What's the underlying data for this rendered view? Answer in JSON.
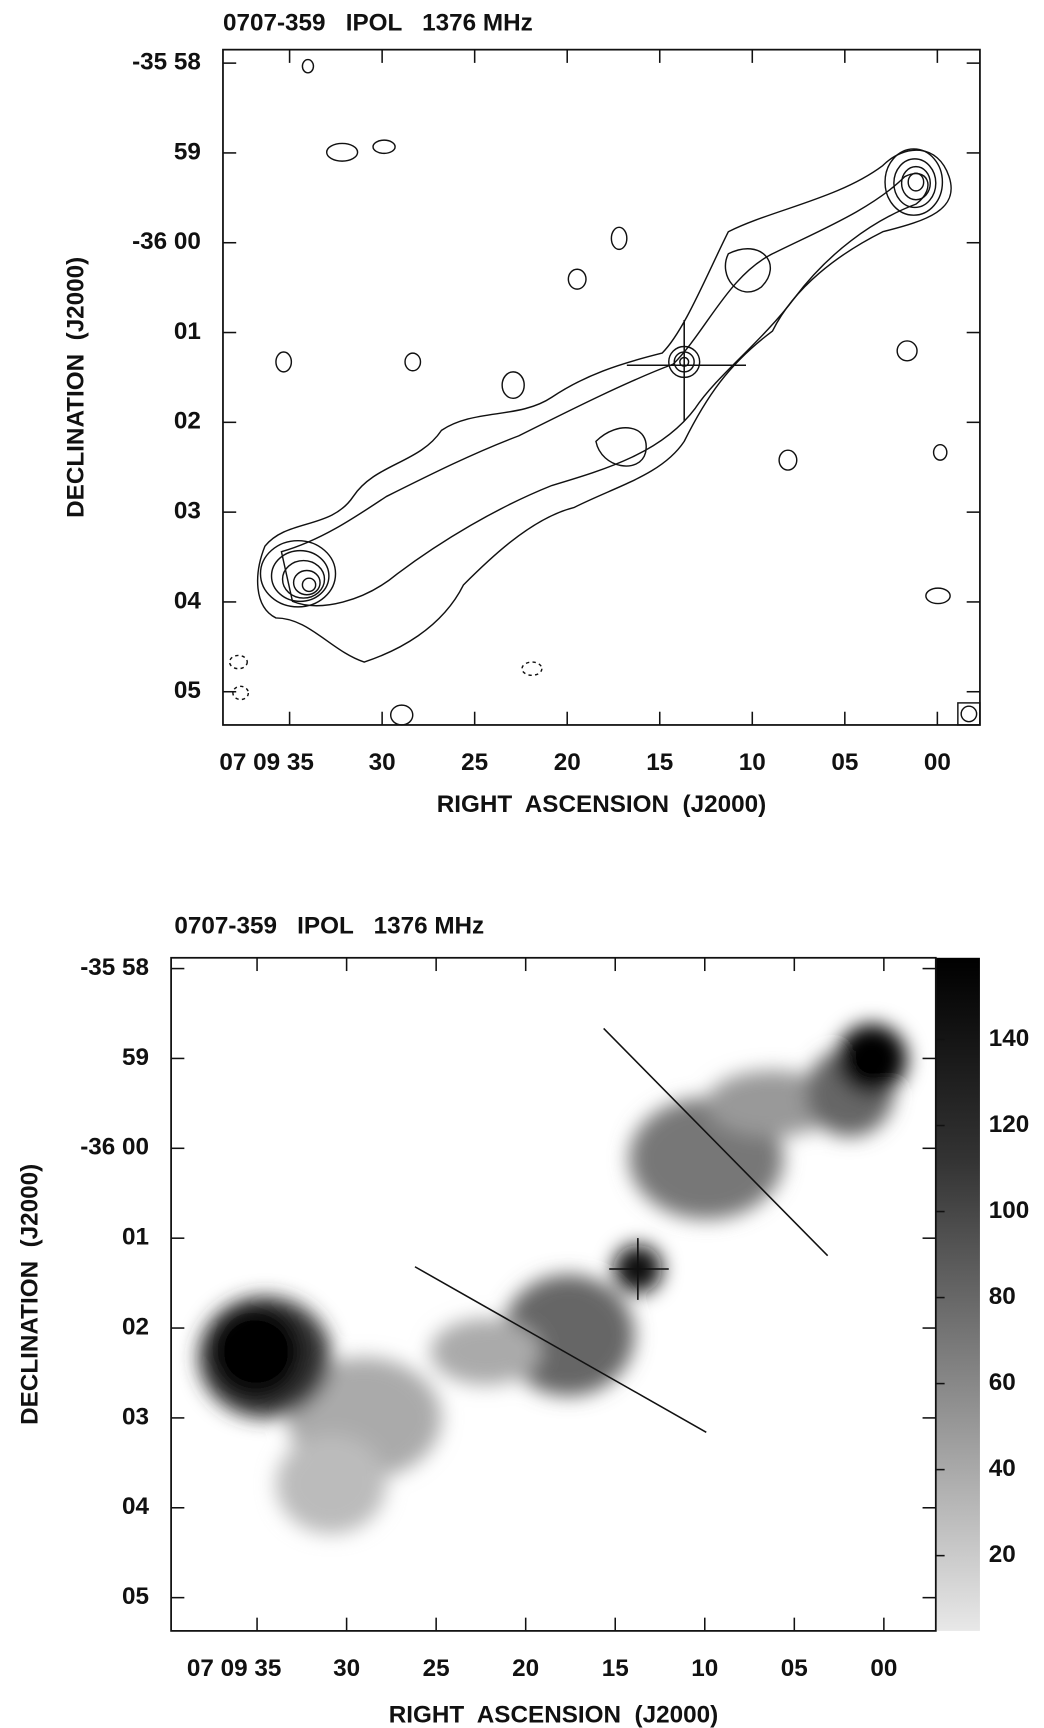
{
  "chart_data": [
    {
      "type": "contour",
      "title": "0707-359   IPOL   1376 MHz",
      "xlabel": "RIGHT  ASCENSION  (J2000)",
      "ylabel": "DECLINATION  (J2000)",
      "xlim": [
        38.6,
        -2.3
      ],
      "ylim": [
        65.37,
        57.85
      ],
      "xticks": [
        {
          "value": 35,
          "label": "07 09 35"
        },
        30,
        25,
        20,
        15,
        10,
        {
          "value": 5,
          "label": "05"
        },
        {
          "value": 0,
          "label": "00"
        }
      ],
      "yticks": [
        {
          "value": 58,
          "label": "-35 58"
        },
        59,
        {
          "value": 60,
          "label": "-36 00"
        },
        {
          "value": 61,
          "label": "01"
        },
        {
          "value": 62,
          "label": "02"
        },
        {
          "value": 63,
          "label": "03"
        },
        {
          "value": 64,
          "label": "04"
        },
        {
          "value": 65,
          "label": "05"
        }
      ]
    },
    {
      "type": "image",
      "title": "0707-359   IPOL   1376 MHz",
      "xlabel": "RIGHT  ASCENSION  (J2000)",
      "ylabel": "DECLINATION  (J2000)",
      "xlim": [
        39.8,
        -2.9
      ],
      "ylim": [
        65.37,
        57.88
      ],
      "xticks": [
        {
          "value": 35,
          "label": "07 09 35"
        },
        30,
        25,
        20,
        15,
        10,
        {
          "value": 5,
          "label": "05"
        },
        {
          "value": 0,
          "label": "00"
        }
      ],
      "yticks": [
        {
          "value": 58,
          "label": "-35 58"
        },
        59,
        {
          "value": 60,
          "label": "-36 00"
        },
        {
          "value": 61,
          "label": "01"
        },
        {
          "value": 62,
          "label": "02"
        },
        {
          "value": 63,
          "label": "03"
        },
        {
          "value": 64,
          "label": "04"
        },
        {
          "value": 65,
          "label": "05"
        }
      ],
      "zlim": [
        2.5,
        159
      ],
      "zticks": [
        20,
        40,
        60,
        80,
        100,
        120,
        140
      ]
    }
  ]
}
